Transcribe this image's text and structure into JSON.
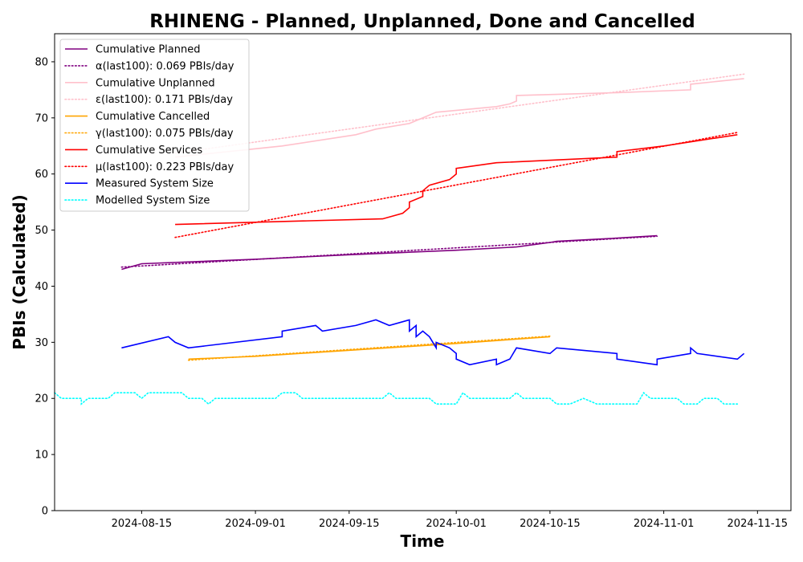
{
  "chart_data": {
    "type": "line",
    "title": "RHINENG - Planned, Unplanned, Done  and Cancelled",
    "xlabel": "Time",
    "ylabel": "PBIs (Calculated)",
    "xlim": [
      "2024-08-02",
      "2024-11-20"
    ],
    "ylim": [
      0,
      85
    ],
    "x_ticks": [
      "2024-08-15",
      "2024-09-01",
      "2024-09-15",
      "2024-10-01",
      "2024-10-15",
      "2024-11-01",
      "2024-11-15"
    ],
    "y_ticks": [
      0,
      10,
      20,
      30,
      40,
      50,
      60,
      70,
      80
    ],
    "grid": false,
    "legend_position": "upper-left",
    "series": [
      {
        "name": "Cumulative Planned",
        "color": "#800080",
        "style": "solid",
        "points": [
          [
            "2024-08-12",
            43
          ],
          [
            "2024-08-15",
            44
          ],
          [
            "2024-09-01",
            44.8
          ],
          [
            "2024-09-15",
            45.6
          ],
          [
            "2024-10-01",
            46.4
          ],
          [
            "2024-10-10",
            47
          ],
          [
            "2024-10-15",
            47.8
          ],
          [
            "2024-10-16",
            48
          ],
          [
            "2024-10-24",
            48.5
          ],
          [
            "2024-10-31",
            49
          ]
        ]
      },
      {
        "name": "α(last100): 0.069 PBIs/day",
        "color": "#800080",
        "style": "dotted",
        "points": [
          [
            "2024-08-12",
            43.4
          ],
          [
            "2024-10-31",
            48.9
          ]
        ]
      },
      {
        "name": "Cumulative Unplanned",
        "color": "#ffc0cb",
        "style": "solid",
        "points": [
          [
            "2024-08-20",
            63
          ],
          [
            "2024-09-01",
            64.5
          ],
          [
            "2024-09-05",
            65
          ],
          [
            "2024-09-16",
            67
          ],
          [
            "2024-09-19",
            68
          ],
          [
            "2024-09-24",
            69
          ],
          [
            "2024-09-28",
            71
          ],
          [
            "2024-10-07",
            72
          ],
          [
            "2024-10-09",
            72.5
          ],
          [
            "2024-10-10",
            73
          ],
          [
            "2024-10-10",
            74
          ],
          [
            "2024-10-25",
            74.5
          ],
          [
            "2024-11-05",
            75
          ],
          [
            "2024-11-05",
            76
          ],
          [
            "2024-11-13",
            77
          ]
        ]
      },
      {
        "name": "ε(last100): 0.171 PBIs/day",
        "color": "#ffc0cb",
        "style": "dotted",
        "points": [
          [
            "2024-08-20",
            63.7
          ],
          [
            "2024-11-13",
            77.8
          ]
        ]
      },
      {
        "name": "Cumulative Cancelled",
        "color": "#ffa500",
        "style": "solid",
        "points": [
          [
            "2024-08-22",
            27
          ],
          [
            "2024-09-01",
            27.5
          ],
          [
            "2024-10-01",
            29.8
          ],
          [
            "2024-10-15",
            31
          ]
        ]
      },
      {
        "name": "γ(last100): 0.075 PBIs/day",
        "color": "#ffa500",
        "style": "dotted",
        "points": [
          [
            "2024-08-22",
            26.8
          ],
          [
            "2024-10-15",
            31.1
          ]
        ]
      },
      {
        "name": "Cumulative Services",
        "color": "#ff0000",
        "style": "solid",
        "points": [
          [
            "2024-08-20",
            51
          ],
          [
            "2024-09-01",
            51.4
          ],
          [
            "2024-09-20",
            52
          ],
          [
            "2024-09-23",
            53
          ],
          [
            "2024-09-24",
            54
          ],
          [
            "2024-09-24",
            55
          ],
          [
            "2024-09-26",
            56
          ],
          [
            "2024-09-26",
            57
          ],
          [
            "2024-09-27",
            58
          ],
          [
            "2024-09-30",
            59
          ],
          [
            "2024-10-01",
            60
          ],
          [
            "2024-10-01",
            61
          ],
          [
            "2024-10-07",
            62
          ],
          [
            "2024-10-25",
            63
          ],
          [
            "2024-10-25",
            64
          ],
          [
            "2024-11-01",
            65
          ],
          [
            "2024-11-12",
            67
          ]
        ]
      },
      {
        "name": "μ(last100): 0.223 PBIs/day",
        "color": "#ff0000",
        "style": "dotted",
        "points": [
          [
            "2024-08-20",
            48.7
          ],
          [
            "2024-11-12",
            67.4
          ]
        ]
      },
      {
        "name": "Measured System Size",
        "color": "#0000ff",
        "style": "solid",
        "points": [
          [
            "2024-08-12",
            29
          ],
          [
            "2024-08-19",
            31
          ],
          [
            "2024-08-20",
            30
          ],
          [
            "2024-08-22",
            29
          ],
          [
            "2024-09-05",
            31
          ],
          [
            "2024-09-05",
            32
          ],
          [
            "2024-09-10",
            33
          ],
          [
            "2024-09-11",
            32
          ],
          [
            "2024-09-16",
            33
          ],
          [
            "2024-09-19",
            34
          ],
          [
            "2024-09-21",
            33
          ],
          [
            "2024-09-24",
            34
          ],
          [
            "2024-09-24",
            32
          ],
          [
            "2024-09-25",
            33
          ],
          [
            "2024-09-25",
            31
          ],
          [
            "2024-09-26",
            32
          ],
          [
            "2024-09-27",
            31
          ],
          [
            "2024-09-28",
            29
          ],
          [
            "2024-09-28",
            30
          ],
          [
            "2024-09-30",
            29
          ],
          [
            "2024-10-01",
            28
          ],
          [
            "2024-10-01",
            27
          ],
          [
            "2024-10-03",
            26
          ],
          [
            "2024-10-07",
            27
          ],
          [
            "2024-10-07",
            26
          ],
          [
            "2024-10-09",
            27
          ],
          [
            "2024-10-10",
            29
          ],
          [
            "2024-10-15",
            28
          ],
          [
            "2024-10-16",
            29
          ],
          [
            "2024-10-25",
            28
          ],
          [
            "2024-10-25",
            27
          ],
          [
            "2024-10-31",
            26
          ],
          [
            "2024-10-31",
            27
          ],
          [
            "2024-11-05",
            28
          ],
          [
            "2024-11-05",
            29
          ],
          [
            "2024-11-06",
            28
          ],
          [
            "2024-11-12",
            27
          ],
          [
            "2024-11-13",
            28
          ]
        ]
      },
      {
        "name": "Modelled System Size",
        "color": "#00ffff",
        "style": "dotted",
        "points": [
          [
            "2024-08-02",
            21
          ],
          [
            "2024-08-03",
            20
          ],
          [
            "2024-08-06",
            20
          ],
          [
            "2024-08-06",
            19
          ],
          [
            "2024-08-07",
            20
          ],
          [
            "2024-08-10",
            20
          ],
          [
            "2024-08-11",
            21
          ],
          [
            "2024-08-14",
            21
          ],
          [
            "2024-08-15",
            20
          ],
          [
            "2024-08-16",
            21
          ],
          [
            "2024-08-21",
            21
          ],
          [
            "2024-08-22",
            20
          ],
          [
            "2024-08-24",
            20
          ],
          [
            "2024-08-25",
            19
          ],
          [
            "2024-08-26",
            20
          ],
          [
            "2024-09-04",
            20
          ],
          [
            "2024-09-05",
            21
          ],
          [
            "2024-09-07",
            21
          ],
          [
            "2024-09-08",
            20
          ],
          [
            "2024-09-20",
            20
          ],
          [
            "2024-09-21",
            21
          ],
          [
            "2024-09-22",
            20
          ],
          [
            "2024-09-27",
            20
          ],
          [
            "2024-09-28",
            19
          ],
          [
            "2024-10-01",
            19
          ],
          [
            "2024-10-02",
            21
          ],
          [
            "2024-10-03",
            20
          ],
          [
            "2024-10-09",
            20
          ],
          [
            "2024-10-10",
            21
          ],
          [
            "2024-10-11",
            20
          ],
          [
            "2024-10-15",
            20
          ],
          [
            "2024-10-16",
            19
          ],
          [
            "2024-10-18",
            19
          ],
          [
            "2024-10-20",
            20
          ],
          [
            "2024-10-22",
            19
          ],
          [
            "2024-10-28",
            19
          ],
          [
            "2024-10-29",
            21
          ],
          [
            "2024-10-30",
            20
          ],
          [
            "2024-11-03",
            20
          ],
          [
            "2024-11-04",
            19
          ],
          [
            "2024-11-06",
            19
          ],
          [
            "2024-11-07",
            20
          ],
          [
            "2024-11-09",
            20
          ],
          [
            "2024-11-10",
            19
          ],
          [
            "2024-11-12",
            19
          ]
        ]
      }
    ]
  }
}
